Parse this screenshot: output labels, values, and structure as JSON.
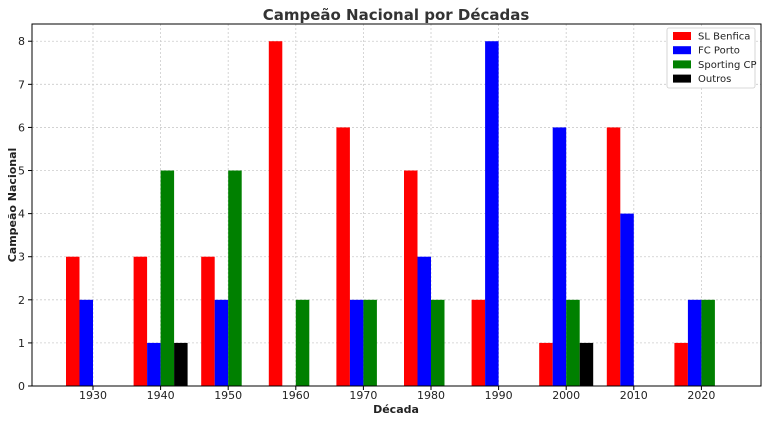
{
  "chart_data": {
    "type": "bar",
    "title": "Campeão Nacional por Décadas",
    "xlabel": "Década",
    "ylabel": "Campeão Nacional",
    "categories": [
      "1930",
      "1940",
      "1950",
      "1960",
      "1970",
      "1980",
      "1990",
      "2000",
      "2010",
      "2020"
    ],
    "yticks": [
      "0",
      "1",
      "2",
      "3",
      "4",
      "5",
      "6",
      "7",
      "8"
    ],
    "ylim": [
      0,
      8.4
    ],
    "grid": true,
    "legend_position": "top-right",
    "series": [
      {
        "name": "SL Benfica",
        "color": "#ff0000",
        "values": [
          3,
          3,
          3,
          8,
          6,
          5,
          2,
          1,
          6,
          1
        ]
      },
      {
        "name": "FC Porto",
        "color": "#0000ff",
        "values": [
          2,
          1,
          2,
          0,
          2,
          3,
          8,
          6,
          4,
          2
        ]
      },
      {
        "name": "Sporting CP",
        "color": "#008000",
        "values": [
          0,
          5,
          5,
          2,
          2,
          2,
          0,
          2,
          0,
          2
        ]
      },
      {
        "name": "Outros",
        "color": "#000000",
        "values": [
          0,
          1,
          0,
          0,
          0,
          0,
          0,
          1,
          0,
          0
        ]
      }
    ]
  }
}
